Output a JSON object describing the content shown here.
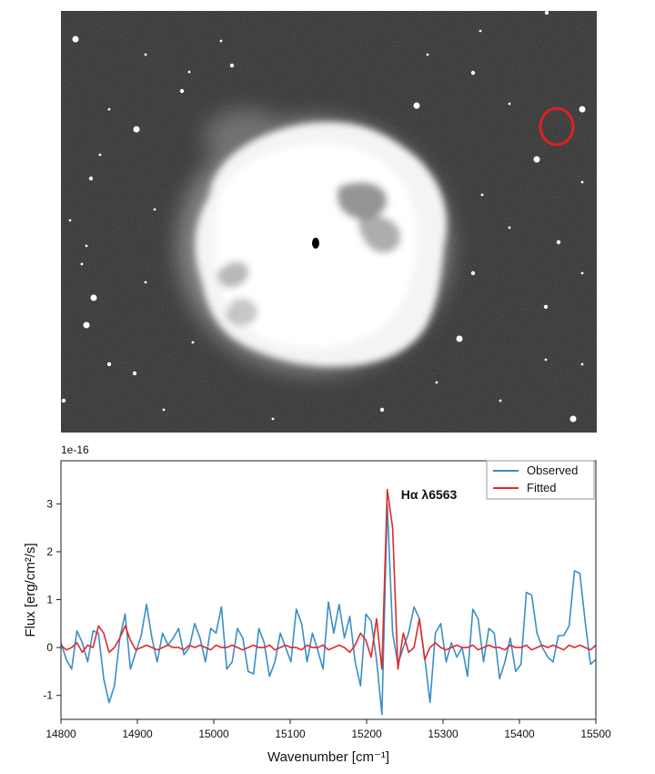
{
  "image_panel": {
    "background": "#2e2e2e",
    "nebula_color": "#ffffff",
    "marker_color": "#e02020"
  },
  "chart_data": {
    "type": "line",
    "xlabel": "Wavenumber [cm⁻¹]",
    "ylabel": "Flux [erg/cm²/s]",
    "offset_label": "1e-16",
    "xlim": [
      14800,
      15500
    ],
    "ylim": [
      -1.5,
      3.9
    ],
    "x_ticks": [
      14800,
      14900,
      15000,
      15100,
      15200,
      15300,
      15400,
      15500
    ],
    "y_ticks": [
      -1,
      0,
      1,
      2,
      3
    ],
    "grid": false,
    "legend_position": "top-right",
    "annotation": {
      "text": "Hα λ6563",
      "x": 15245,
      "y": 3.1
    },
    "series": [
      {
        "name": "Observed",
        "color": "#3a8fc4",
        "x": [
          14800,
          14807,
          14814,
          14821,
          14828,
          14835,
          14842,
          14849,
          14856,
          14863,
          14870,
          14877,
          14884,
          14891,
          14898,
          14905,
          14912,
          14919,
          14926,
          14933,
          14940,
          14947,
          14954,
          14961,
          14968,
          14975,
          14982,
          14989,
          14996,
          15003,
          15010,
          15017,
          15024,
          15031,
          15038,
          15045,
          15052,
          15059,
          15066,
          15073,
          15080,
          15087,
          15094,
          15101,
          15108,
          15115,
          15122,
          15129,
          15136,
          15143,
          15150,
          15157,
          15164,
          15171,
          15178,
          15185,
          15192,
          15199,
          15206,
          15213,
          15220,
          15227,
          15234,
          15241,
          15248,
          15255,
          15262,
          15269,
          15276,
          15283,
          15290,
          15297,
          15304,
          15311,
          15318,
          15325,
          15332,
          15339,
          15346,
          15353,
          15360,
          15367,
          15374,
          15381,
          15388,
          15395,
          15402,
          15409,
          15416,
          15423,
          15430,
          15437,
          15444,
          15451,
          15458,
          15465,
          15472,
          15479,
          15486,
          15493,
          15500
        ],
        "values": [
          0.1,
          -0.25,
          -0.45,
          0.35,
          0.1,
          -0.3,
          0.35,
          0.3,
          -0.65,
          -1.15,
          -0.8,
          0.2,
          0.7,
          -0.45,
          -0.1,
          0.25,
          0.9,
          0.2,
          -0.3,
          0.3,
          0.05,
          0.2,
          0.4,
          -0.15,
          0.0,
          0.5,
          0.2,
          -0.3,
          0.4,
          0.3,
          0.85,
          -0.45,
          -0.3,
          0.4,
          0.2,
          -0.5,
          -0.55,
          0.4,
          0.1,
          -0.6,
          -0.3,
          0.3,
          0.0,
          -0.3,
          0.8,
          0.5,
          -0.3,
          0.3,
          -0.05,
          -0.45,
          0.95,
          0.3,
          0.9,
          0.2,
          0.65,
          -0.3,
          -0.8,
          0.7,
          0.55,
          -0.25,
          -1.4,
          3.0,
          0.3,
          -0.35,
          0.0,
          0.3,
          0.85,
          0.6,
          -0.2,
          -1.15,
          0.3,
          0.5,
          -0.3,
          0.1,
          -0.2,
          0.0,
          -0.6,
          0.8,
          0.6,
          -0.3,
          0.4,
          0.3,
          -0.65,
          -0.3,
          0.2,
          -0.5,
          -0.35,
          1.15,
          1.1,
          0.3,
          0.0,
          -0.2,
          -0.3,
          0.25,
          0.25,
          0.45,
          1.6,
          1.55,
          0.55,
          -0.35,
          -0.25
        ]
      },
      {
        "name": "Fitted",
        "color": "#e02a2a",
        "x": [
          14800,
          14807,
          14814,
          14821,
          14828,
          14835,
          14842,
          14849,
          14856,
          14863,
          14870,
          14877,
          14884,
          14891,
          14898,
          14905,
          14912,
          14919,
          14926,
          14933,
          14940,
          14947,
          14954,
          14961,
          14968,
          14975,
          14982,
          14989,
          14996,
          15003,
          15010,
          15017,
          15024,
          15031,
          15038,
          15045,
          15052,
          15059,
          15066,
          15073,
          15080,
          15087,
          15094,
          15101,
          15108,
          15115,
          15122,
          15129,
          15136,
          15143,
          15150,
          15157,
          15164,
          15171,
          15178,
          15185,
          15192,
          15199,
          15206,
          15213,
          15220,
          15227,
          15234,
          15241,
          15248,
          15255,
          15262,
          15269,
          15276,
          15283,
          15290,
          15297,
          15304,
          15311,
          15318,
          15325,
          15332,
          15339,
          15346,
          15353,
          15360,
          15367,
          15374,
          15381,
          15388,
          15395,
          15402,
          15409,
          15416,
          15423,
          15430,
          15437,
          15444,
          15451,
          15458,
          15465,
          15472,
          15479,
          15486,
          15493,
          15500
        ],
        "values": [
          0.05,
          -0.05,
          0.0,
          0.1,
          -0.1,
          0.05,
          0.0,
          0.45,
          0.3,
          -0.1,
          0.0,
          0.2,
          0.45,
          0.15,
          -0.05,
          0.0,
          0.05,
          0.0,
          -0.05,
          0.0,
          0.05,
          0.0,
          0.0,
          -0.05,
          0.05,
          0.0,
          0.05,
          0.0,
          -0.05,
          0.05,
          0.0,
          0.0,
          0.05,
          0.0,
          -0.05,
          0.0,
          0.05,
          0.0,
          0.0,
          0.05,
          -0.05,
          0.0,
          0.05,
          0.0,
          0.0,
          -0.05,
          0.05,
          0.0,
          0.0,
          0.05,
          -0.05,
          0.0,
          0.05,
          0.0,
          -0.1,
          0.05,
          0.3,
          0.15,
          -0.2,
          0.6,
          -0.45,
          3.3,
          2.5,
          -0.45,
          0.3,
          -0.1,
          0.0,
          0.6,
          -0.25,
          0.0,
          0.1,
          0.0,
          -0.05,
          0.0,
          0.05,
          0.0,
          0.0,
          0.05,
          -0.05,
          0.0,
          0.05,
          0.0,
          0.0,
          -0.05,
          0.05,
          0.0,
          0.0,
          0.05,
          -0.05,
          0.0,
          0.05,
          0.0,
          0.05,
          0.0,
          -0.05,
          0.05,
          0.0,
          0.05,
          0.0,
          -0.05,
          0.05
        ]
      }
    ]
  }
}
